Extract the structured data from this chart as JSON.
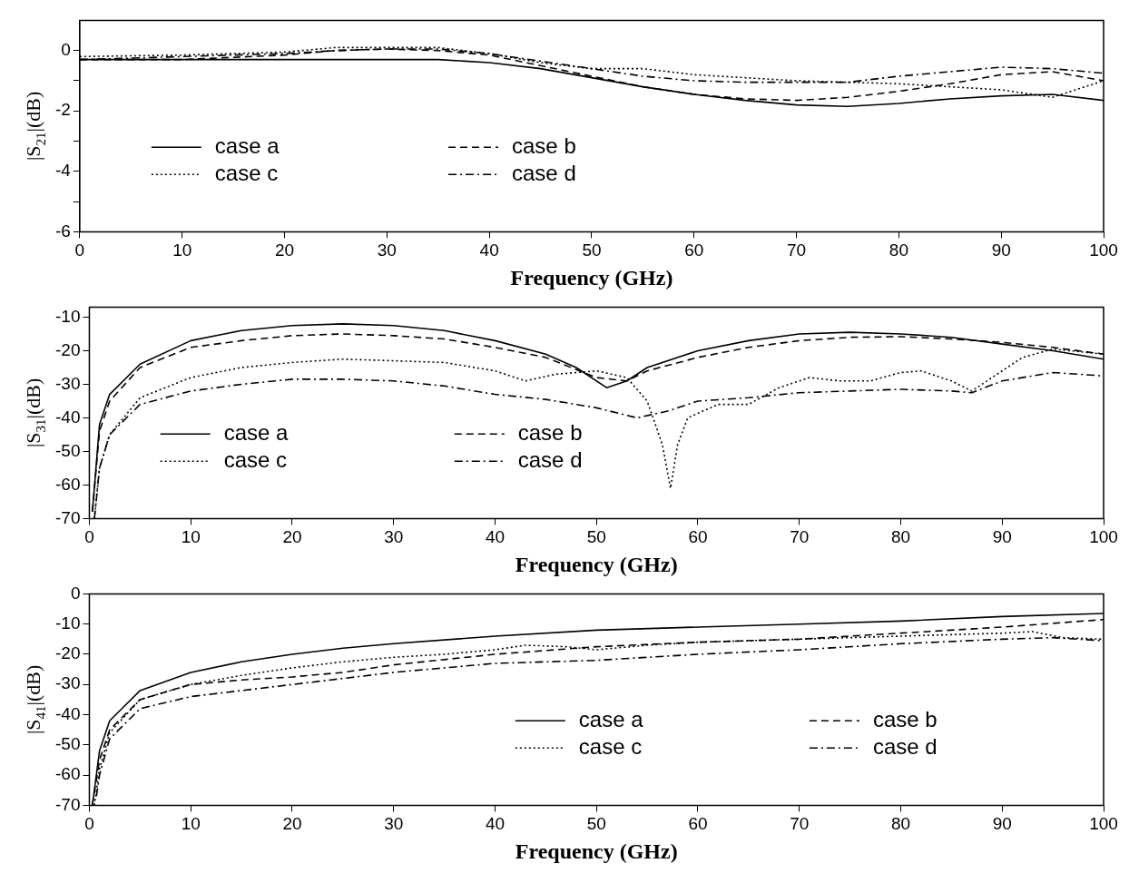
{
  "chart_data": [
    {
      "type": "line",
      "xlabel": "Frequency (GHz)",
      "ylabel": "|S$_{21}$|(dB)",
      "xlim": [
        0,
        100
      ],
      "xticks": [
        0,
        10,
        20,
        30,
        40,
        50,
        60,
        70,
        80,
        90,
        100
      ],
      "ylim": [
        -6,
        1
      ],
      "yticks": [
        -6,
        {
          "value": -5,
          "label": null
        },
        -4,
        {
          "value": -3,
          "label": null
        },
        -2,
        {
          "value": -1,
          "label": null
        },
        0
      ],
      "grid": false,
      "legend": "bottom left",
      "marker": "none",
      "series": [
        {
          "name": "case a",
          "color": "#000000",
          "line_style": "solid",
          "x": [
            0,
            5,
            10,
            20,
            30,
            35,
            40,
            45,
            50,
            55,
            60,
            65,
            70,
            75,
            80,
            85,
            90,
            95,
            100
          ],
          "values": [
            -0.3,
            -0.3,
            -0.3,
            -0.3,
            -0.3,
            -0.3,
            -0.4,
            -0.6,
            -0.9,
            -1.2,
            -1.45,
            -1.65,
            -1.8,
            -1.85,
            -1.75,
            -1.6,
            -1.5,
            -1.45,
            -1.65
          ]
        },
        {
          "name": "case b",
          "color": "#000000",
          "line_style": "dashed",
          "x": [
            0,
            10,
            20,
            25,
            30,
            35,
            40,
            45,
            50,
            55,
            60,
            65,
            70,
            75,
            80,
            85,
            90,
            95,
            100
          ],
          "values": [
            -0.3,
            -0.3,
            -0.15,
            0,
            0.05,
            0,
            -0.15,
            -0.5,
            -0.85,
            -1.2,
            -1.45,
            -1.6,
            -1.65,
            -1.55,
            -1.35,
            -1.1,
            -0.8,
            -0.7,
            -1.0
          ]
        },
        {
          "name": "case c",
          "color": "#000000",
          "line_style": "dotted",
          "x": [
            0,
            10,
            20,
            25,
            30,
            35,
            40,
            45,
            50,
            55,
            60,
            65,
            70,
            75,
            80,
            85,
            90,
            95,
            100
          ],
          "values": [
            -0.2,
            -0.15,
            -0.05,
            0.1,
            0.1,
            0.1,
            -0.1,
            -0.4,
            -0.6,
            -0.6,
            -0.8,
            -0.9,
            -1.0,
            -1.05,
            -1.1,
            -1.2,
            -1.3,
            -1.55,
            -1.0
          ]
        },
        {
          "name": "case d",
          "color": "#000000",
          "line_style": "dashdot",
          "x": [
            0,
            10,
            20,
            25,
            30,
            35,
            40,
            45,
            50,
            55,
            60,
            65,
            70,
            75,
            80,
            85,
            90,
            95,
            100
          ],
          "values": [
            -0.3,
            -0.2,
            -0.1,
            0,
            0.05,
            0.05,
            -0.1,
            -0.35,
            -0.6,
            -0.85,
            -1.0,
            -1.05,
            -1.05,
            -1.05,
            -0.85,
            -0.7,
            -0.55,
            -0.6,
            -0.75
          ]
        }
      ]
    },
    {
      "type": "line",
      "xlabel": "Frequency (GHz)",
      "ylabel": "|S$_{31}$|(dB)",
      "xlim": [
        0,
        100
      ],
      "xticks": [
        0,
        10,
        20,
        30,
        40,
        50,
        60,
        70,
        80,
        90,
        100
      ],
      "ylim": [
        -70,
        -7
      ],
      "yticks": [
        -70,
        -60,
        -50,
        -40,
        -30,
        -20,
        -10
      ],
      "grid": false,
      "legend": "bottom left",
      "marker": "none",
      "series": [
        {
          "name": "case a",
          "color": "#000000",
          "line_style": "solid",
          "x": [
            0.3,
            1,
            2,
            5,
            10,
            15,
            20,
            25,
            30,
            35,
            40,
            45,
            48,
            51,
            53,
            55,
            60,
            65,
            70,
            75,
            80,
            85,
            90,
            95,
            100
          ],
          "values": [
            -68,
            -42,
            -33,
            -24,
            -17,
            -14,
            -12.5,
            -12,
            -12.5,
            -14,
            -17,
            -21,
            -25,
            -31,
            -29,
            -25,
            -20,
            -17,
            -15,
            -14.5,
            -15,
            -16,
            -18,
            -20,
            -22.5
          ]
        },
        {
          "name": "case b",
          "color": "#000000",
          "line_style": "dashed",
          "x": [
            0.3,
            1,
            2,
            5,
            10,
            15,
            20,
            25,
            30,
            35,
            40,
            45,
            50,
            53,
            55,
            60,
            65,
            70,
            75,
            80,
            85,
            90,
            95,
            100
          ],
          "values": [
            -68,
            -44,
            -35,
            -25,
            -19,
            -17,
            -15.5,
            -15,
            -15.5,
            -16.5,
            -19,
            -22,
            -28,
            -29,
            -26,
            -22,
            -19,
            -17,
            -16,
            -15.8,
            -16.5,
            -17.5,
            -19,
            -21
          ]
        },
        {
          "name": "case c",
          "color": "#000000",
          "line_style": "dotted",
          "x": [
            0.5,
            1,
            2,
            5,
            10,
            15,
            20,
            25,
            30,
            35,
            40,
            43,
            46,
            50,
            53,
            55,
            56.5,
            57.3,
            58,
            59,
            62,
            65,
            68,
            71,
            74,
            77,
            80,
            82,
            85,
            87,
            89,
            92,
            95,
            100
          ],
          "values": [
            -70,
            -55,
            -45,
            -34,
            -28,
            -25,
            -23.5,
            -22.5,
            -23,
            -23.5,
            -26,
            -29,
            -27,
            -26,
            -28,
            -35,
            -48,
            -61,
            -48,
            -40,
            -36,
            -36,
            -31,
            -28,
            -29,
            -29,
            -26.5,
            -26,
            -29,
            -32,
            -28,
            -22,
            -19.5,
            -21
          ]
        },
        {
          "name": "case d",
          "color": "#000000",
          "line_style": "dashdot",
          "x": [
            0.5,
            1,
            2,
            5,
            10,
            15,
            20,
            25,
            30,
            35,
            40,
            45,
            50,
            54,
            57,
            60,
            65,
            70,
            75,
            80,
            85,
            87,
            90,
            95,
            100
          ],
          "values": [
            -70,
            -55,
            -45,
            -36,
            -32,
            -30,
            -28.5,
            -28.5,
            -29,
            -30.5,
            -33,
            -34.5,
            -37,
            -40,
            -38,
            -35,
            -34,
            -32.5,
            -32,
            -31.5,
            -32,
            -32.5,
            -29,
            -26.5,
            -27.5
          ]
        }
      ]
    },
    {
      "type": "line",
      "xlabel": "Frequency (GHz)",
      "ylabel": "|S$_{41}$|(dB)",
      "xlim": [
        0,
        100
      ],
      "xticks": [
        0,
        10,
        20,
        30,
        40,
        50,
        60,
        70,
        80,
        90,
        100
      ],
      "ylim": [
        -70,
        0
      ],
      "yticks": [
        -70,
        -60,
        -50,
        -40,
        -30,
        -20,
        -10,
        0
      ],
      "grid": false,
      "legend": "bottom right",
      "marker": "none",
      "series": [
        {
          "name": "case a",
          "color": "#000000",
          "line_style": "solid",
          "x": [
            0.3,
            1,
            2,
            5,
            10,
            15,
            20,
            25,
            30,
            40,
            50,
            60,
            70,
            80,
            90,
            100
          ],
          "values": [
            -70,
            -52,
            -42,
            -32,
            -26,
            -22.5,
            -20,
            -18,
            -16.5,
            -14,
            -12,
            -11,
            -10,
            -9,
            -7.5,
            -6.5
          ]
        },
        {
          "name": "case b",
          "color": "#000000",
          "line_style": "dashed",
          "x": [
            0.3,
            1,
            2,
            5,
            10,
            15,
            20,
            25,
            30,
            40,
            50,
            60,
            70,
            80,
            90,
            100
          ],
          "values": [
            -70,
            -55,
            -45,
            -35,
            -30,
            -28.5,
            -27.5,
            -26,
            -23.5,
            -20,
            -17.5,
            -16,
            -15,
            -13,
            -11,
            -8.5
          ]
        },
        {
          "name": "case c",
          "color": "#000000",
          "line_style": "dotted",
          "x": [
            0.5,
            1,
            2,
            5,
            10,
            15,
            20,
            25,
            30,
            35,
            40,
            43,
            47,
            50,
            55,
            60,
            70,
            80,
            90,
            93,
            96,
            100
          ],
          "values": [
            -70,
            -58,
            -46,
            -35,
            -30,
            -27,
            -24.5,
            -22.5,
            -21,
            -20,
            -18.5,
            -17,
            -17.5,
            -18.5,
            -17,
            -16,
            -15,
            -14,
            -13,
            -12.5,
            -14.5,
            -15
          ]
        },
        {
          "name": "case d",
          "color": "#000000",
          "line_style": "dashdot",
          "x": [
            0.7,
            1,
            2,
            5,
            10,
            15,
            20,
            25,
            30,
            40,
            50,
            60,
            70,
            80,
            90,
            95,
            100
          ],
          "values": [
            -67,
            -60,
            -48,
            -38,
            -34,
            -32,
            -30,
            -28,
            -26,
            -23,
            -22,
            -20,
            -18.5,
            -16.5,
            -15,
            -14.5,
            -15.5
          ]
        }
      ]
    }
  ]
}
